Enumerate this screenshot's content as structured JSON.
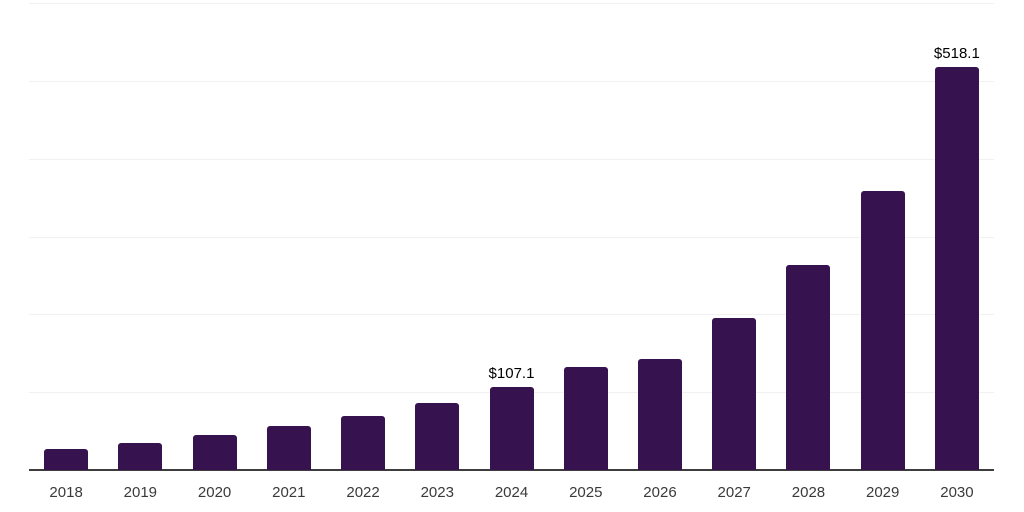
{
  "chart_data": {
    "type": "bar",
    "title": "",
    "xlabel": "",
    "ylabel": "",
    "categories": [
      "2018",
      "2019",
      "2020",
      "2021",
      "2022",
      "2023",
      "2024",
      "2025",
      "2026",
      "2027",
      "2028",
      "2029",
      "2030"
    ],
    "values": [
      27.5,
      35,
      44.5,
      56.5,
      69,
      86.5,
      107.1,
      132,
      142.5,
      195,
      264,
      358,
      518.1
    ],
    "data_labels": {
      "2024": "$107.1",
      "2030": "$518.1"
    },
    "ylim": [
      0,
      600
    ],
    "gridline_interval": 100,
    "grid": true,
    "y_tick_labels_visible": false,
    "legend": "none",
    "colors": {
      "bar": "#36134F",
      "gridline": "#F1F0F3",
      "axis_line": "#3D3D3D",
      "x_tick_label": "#3A3A3A",
      "data_label": "#000000",
      "background": "#FFFFFF"
    }
  }
}
